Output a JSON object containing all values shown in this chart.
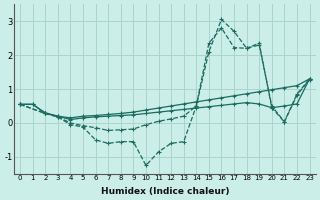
{
  "xlabel": "Humidex (Indice chaleur)",
  "bg_color": "#cceee8",
  "grid_color": "#aad4ce",
  "line_color": "#1a6b60",
  "xlim": [
    -0.5,
    23.5
  ],
  "ylim": [
    -1.5,
    3.5
  ],
  "yticks": [
    -1,
    0,
    1,
    2,
    3
  ],
  "xticks": [
    0,
    1,
    2,
    3,
    4,
    5,
    6,
    7,
    8,
    9,
    10,
    11,
    12,
    13,
    14,
    15,
    16,
    17,
    18,
    19,
    20,
    21,
    22,
    23
  ],
  "line1_x": [
    0,
    1,
    2,
    3,
    4,
    5,
    6,
    7,
    8,
    9,
    10,
    11,
    12,
    13,
    14,
    15,
    16,
    17,
    18,
    19,
    20,
    21,
    22,
    23
  ],
  "line1_y": [
    0.55,
    0.55,
    0.3,
    0.2,
    0.15,
    0.2,
    0.22,
    0.25,
    0.28,
    0.32,
    0.38,
    0.44,
    0.5,
    0.56,
    0.62,
    0.68,
    0.74,
    0.8,
    0.86,
    0.92,
    0.98,
    1.04,
    1.1,
    1.3
  ],
  "line2_x": [
    0,
    1,
    2,
    3,
    4,
    5,
    6,
    7,
    8,
    9,
    10,
    11,
    12,
    13,
    14,
    15,
    16,
    17,
    18,
    19,
    20,
    21,
    22,
    23
  ],
  "line2_y": [
    0.55,
    0.55,
    0.28,
    0.2,
    0.1,
    0.15,
    0.18,
    0.2,
    0.22,
    0.24,
    0.28,
    0.32,
    0.36,
    0.4,
    0.44,
    0.48,
    0.52,
    0.56,
    0.6,
    0.56,
    0.45,
    0.5,
    0.56,
    1.3
  ],
  "line3_x": [
    0,
    2,
    3,
    4,
    5,
    6,
    7,
    8,
    9,
    10,
    11,
    12,
    13,
    14,
    15,
    16,
    17,
    18,
    19,
    20,
    21,
    22,
    23
  ],
  "line3_y": [
    0.55,
    0.28,
    0.18,
    -0.05,
    -0.12,
    -0.5,
    -0.6,
    -0.55,
    -0.55,
    -1.25,
    -0.85,
    -0.6,
    -0.55,
    0.5,
    2.1,
    3.05,
    2.7,
    2.2,
    2.3,
    0.5,
    0.04,
    0.85,
    1.3
  ],
  "line4_x": [
    0,
    2,
    3,
    4,
    5,
    6,
    7,
    8,
    9,
    10,
    11,
    12,
    13,
    14,
    15,
    16,
    17,
    18,
    19,
    20,
    21,
    22,
    23
  ],
  "line4_y": [
    0.55,
    0.28,
    0.18,
    0.0,
    -0.08,
    -0.14,
    -0.22,
    -0.2,
    -0.18,
    -0.05,
    0.05,
    0.12,
    0.2,
    0.5,
    2.35,
    2.8,
    2.22,
    2.2,
    2.35,
    0.45,
    0.03,
    0.82,
    1.28
  ]
}
